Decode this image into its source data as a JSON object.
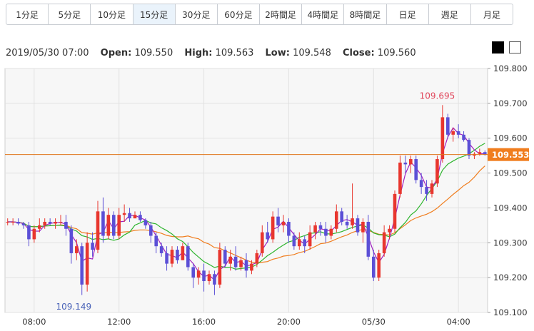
{
  "timeframes": [
    {
      "label": "1分足",
      "active": false
    },
    {
      "label": "5分足",
      "active": false
    },
    {
      "label": "10分足",
      "active": false
    },
    {
      "label": "15分足",
      "active": true
    },
    {
      "label": "30分足",
      "active": false
    },
    {
      "label": "60分足",
      "active": false
    },
    {
      "label": "2時間足",
      "active": false
    },
    {
      "label": "4時間足",
      "active": false
    },
    {
      "label": "8時間足",
      "active": false
    },
    {
      "label": "日足",
      "active": false
    },
    {
      "label": "週足",
      "active": false
    },
    {
      "label": "月足",
      "active": false
    }
  ],
  "ohlc": {
    "datetime": "2019/05/30 07:00",
    "open_label": "Open:",
    "open": "109.550",
    "high_label": "High:",
    "high": "109.563",
    "low_label": "Low:",
    "low": "109.548",
    "close_label": "Close:",
    "close": "109.560"
  },
  "theme_buttons": [
    "dark-theme",
    "light-theme"
  ],
  "chart_data": {
    "type": "candlestick",
    "y_ticks": [
      109.1,
      109.2,
      109.3,
      109.4,
      109.5,
      109.6,
      109.7,
      109.8
    ],
    "y_tick_labels": [
      "109.100",
      "109.200",
      "109.300",
      "109.400",
      "109.500",
      "109.600",
      "109.700",
      "109.800"
    ],
    "ylim": [
      109.1,
      109.8
    ],
    "x_tick_labels": [
      "08:00",
      "12:00",
      "16:00",
      "20:00",
      "05/30",
      "04:00"
    ],
    "x_tick_index": [
      5,
      21,
      37,
      53,
      69,
      85
    ],
    "current_price": "109.553",
    "current_price_value": 109.553,
    "high_marker": {
      "label": "109.695",
      "value": 109.695,
      "index": 81
    },
    "low_marker": {
      "label": "109.149",
      "value": 109.149,
      "index": 13
    },
    "colors": {
      "up": "#e8362e",
      "down": "#5b4fd6",
      "ma_short": "#a020c0",
      "ma_mid": "#2db52d",
      "ma_long": "#f07d1e",
      "price_line": "#e0761c",
      "price_tag": "#f07d1e"
    },
    "candles": [
      [
        109.36,
        109.37,
        109.35,
        109.36
      ],
      [
        109.36,
        109.37,
        109.35,
        109.36
      ],
      [
        109.36,
        109.37,
        109.35,
        109.355
      ],
      [
        109.355,
        109.36,
        109.34,
        109.35
      ],
      [
        109.35,
        109.36,
        109.29,
        109.31
      ],
      [
        109.31,
        109.35,
        109.3,
        109.34
      ],
      [
        109.34,
        109.37,
        109.33,
        109.35
      ],
      [
        109.35,
        109.37,
        109.34,
        109.36
      ],
      [
        109.36,
        109.37,
        109.35,
        109.355
      ],
      [
        109.355,
        109.37,
        109.34,
        109.36
      ],
      [
        109.36,
        109.38,
        109.35,
        109.36
      ],
      [
        109.36,
        109.38,
        109.32,
        109.34
      ],
      [
        109.34,
        109.35,
        109.24,
        109.27
      ],
      [
        109.27,
        109.31,
        109.25,
        109.29
      ],
      [
        109.29,
        109.3,
        109.15,
        109.18
      ],
      [
        109.18,
        109.33,
        109.16,
        109.3
      ],
      [
        109.3,
        109.33,
        109.26,
        109.28
      ],
      [
        109.28,
        109.42,
        109.27,
        109.39
      ],
      [
        109.39,
        109.43,
        109.3,
        109.32
      ],
      [
        109.32,
        109.4,
        109.31,
        109.38
      ],
      [
        109.38,
        109.39,
        109.31,
        109.32
      ],
      [
        109.32,
        109.4,
        109.31,
        109.38
      ],
      [
        109.38,
        109.41,
        109.36,
        109.385
      ],
      [
        109.385,
        109.4,
        109.36,
        109.37
      ],
      [
        109.37,
        109.39,
        109.37,
        109.38
      ],
      [
        109.38,
        109.39,
        109.36,
        109.365
      ],
      [
        109.365,
        109.37,
        109.34,
        109.35
      ],
      [
        109.35,
        109.36,
        109.3,
        109.32
      ],
      [
        109.32,
        109.33,
        109.27,
        109.29
      ],
      [
        109.29,
        109.3,
        109.26,
        109.27
      ],
      [
        109.27,
        109.29,
        109.22,
        109.24
      ],
      [
        109.24,
        109.29,
        109.23,
        109.28
      ],
      [
        109.28,
        109.29,
        109.24,
        109.25
      ],
      [
        109.25,
        109.3,
        109.25,
        109.29
      ],
      [
        109.29,
        109.3,
        109.22,
        109.23
      ],
      [
        109.23,
        109.24,
        109.17,
        109.2
      ],
      [
        109.2,
        109.23,
        109.18,
        109.22
      ],
      [
        109.22,
        109.24,
        109.16,
        109.19
      ],
      [
        109.19,
        109.22,
        109.18,
        109.21
      ],
      [
        109.21,
        109.22,
        109.15,
        109.18
      ],
      [
        109.18,
        109.3,
        109.17,
        109.28
      ],
      [
        109.28,
        109.29,
        109.23,
        109.24
      ],
      [
        109.24,
        109.28,
        109.22,
        109.26
      ],
      [
        109.26,
        109.29,
        109.22,
        109.23
      ],
      [
        109.23,
        109.26,
        109.22,
        109.25
      ],
      [
        109.25,
        109.27,
        109.2,
        109.22
      ],
      [
        109.22,
        109.25,
        109.21,
        109.24
      ],
      [
        109.24,
        109.28,
        109.23,
        109.27
      ],
      [
        109.27,
        109.35,
        109.26,
        109.33
      ],
      [
        109.33,
        109.36,
        109.3,
        109.31
      ],
      [
        109.31,
        109.39,
        109.3,
        109.375
      ],
      [
        109.375,
        109.4,
        109.33,
        109.35
      ],
      [
        109.35,
        109.38,
        109.33,
        109.36
      ],
      [
        109.36,
        109.37,
        109.3,
        109.32
      ],
      [
        109.32,
        109.33,
        109.28,
        109.29
      ],
      [
        109.29,
        109.33,
        109.28,
        109.31
      ],
      [
        109.31,
        109.32,
        109.27,
        109.29
      ],
      [
        109.29,
        109.35,
        109.28,
        109.33
      ],
      [
        109.33,
        109.36,
        109.31,
        109.35
      ],
      [
        109.35,
        109.36,
        109.32,
        109.34
      ],
      [
        109.34,
        109.36,
        109.3,
        109.32
      ],
      [
        109.32,
        109.35,
        109.31,
        109.34
      ],
      [
        109.34,
        109.41,
        109.33,
        109.39
      ],
      [
        109.39,
        109.4,
        109.35,
        109.36
      ],
      [
        109.36,
        109.38,
        109.34,
        109.35
      ],
      [
        109.35,
        109.47,
        109.34,
        109.37
      ],
      [
        109.37,
        109.38,
        109.32,
        109.33
      ],
      [
        109.33,
        109.37,
        109.3,
        109.36
      ],
      [
        109.36,
        109.38,
        109.25,
        109.26
      ],
      [
        109.26,
        109.28,
        109.19,
        109.2
      ],
      [
        109.2,
        109.28,
        109.19,
        109.27
      ],
      [
        109.27,
        109.35,
        109.26,
        109.33
      ],
      [
        109.33,
        109.35,
        109.31,
        109.34
      ],
      [
        109.34,
        109.45,
        109.33,
        109.44
      ],
      [
        109.44,
        109.55,
        109.43,
        109.53
      ],
      [
        109.53,
        109.55,
        109.5,
        109.525
      ],
      [
        109.525,
        109.55,
        109.5,
        109.54
      ],
      [
        109.54,
        109.55,
        109.47,
        109.48
      ],
      [
        109.48,
        109.5,
        109.44,
        109.46
      ],
      [
        109.46,
        109.48,
        109.42,
        109.44
      ],
      [
        109.44,
        109.48,
        109.43,
        109.47
      ],
      [
        109.47,
        109.55,
        109.46,
        109.54
      ],
      [
        109.54,
        109.695,
        109.53,
        109.66
      ],
      [
        109.66,
        109.67,
        109.6,
        109.61
      ],
      [
        109.61,
        109.63,
        109.59,
        109.62
      ],
      [
        109.62,
        109.64,
        109.6,
        109.61
      ],
      [
        109.61,
        109.62,
        109.59,
        109.595
      ],
      [
        109.595,
        109.6,
        109.54,
        109.55
      ],
      [
        109.55,
        109.56,
        109.54,
        109.555
      ],
      [
        109.555,
        109.57,
        109.55,
        109.56
      ],
      [
        109.56,
        109.565,
        109.55,
        109.553
      ]
    ]
  }
}
